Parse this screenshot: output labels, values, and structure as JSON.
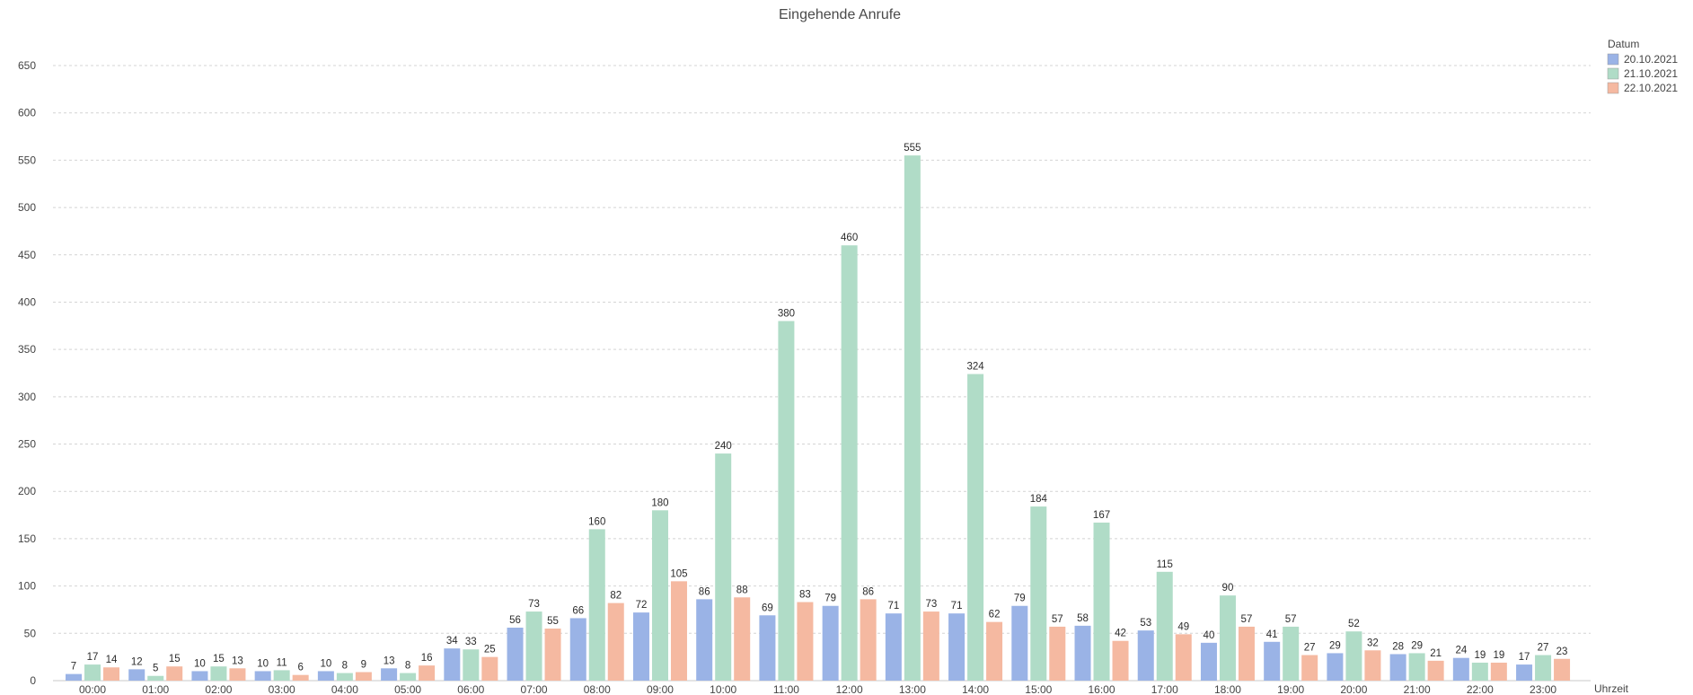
{
  "chart_data": {
    "type": "bar",
    "title": "Eingehende Anrufe",
    "xlabel": "Uhrzeit",
    "ylabel": "",
    "ylim": [
      0,
      650
    ],
    "yticks": [
      0,
      50,
      100,
      150,
      200,
      250,
      300,
      350,
      400,
      450,
      500,
      550,
      600,
      650
    ],
    "grid": true,
    "legend": {
      "title": "Datum",
      "position": "top-right"
    },
    "categories": [
      "00:00",
      "01:00",
      "02:00",
      "03:00",
      "04:00",
      "05:00",
      "06:00",
      "07:00",
      "08:00",
      "09:00",
      "10:00",
      "11:00",
      "12:00",
      "13:00",
      "14:00",
      "15:00",
      "16:00",
      "17:00",
      "18:00",
      "19:00",
      "20:00",
      "21:00",
      "22:00",
      "23:00"
    ],
    "series": [
      {
        "name": "20.10.2021",
        "color": "#9ab3e6",
        "values": [
          7,
          12,
          10,
          10,
          10,
          13,
          34,
          56,
          66,
          72,
          86,
          69,
          79,
          71,
          71,
          79,
          58,
          53,
          40,
          41,
          29,
          28,
          24,
          17
        ]
      },
      {
        "name": "21.10.2021",
        "color": "#b0dcc7",
        "values": [
          17,
          5,
          15,
          11,
          8,
          8,
          33,
          73,
          160,
          180,
          240,
          380,
          460,
          555,
          324,
          184,
          167,
          115,
          90,
          57,
          52,
          29,
          19,
          27
        ]
      },
      {
        "name": "22.10.2021",
        "color": "#f5b9a1",
        "values": [
          14,
          15,
          13,
          6,
          9,
          16,
          25,
          55,
          82,
          105,
          88,
          83,
          86,
          73,
          62,
          57,
          42,
          49,
          57,
          27,
          32,
          21,
          19,
          23
        ]
      }
    ]
  }
}
